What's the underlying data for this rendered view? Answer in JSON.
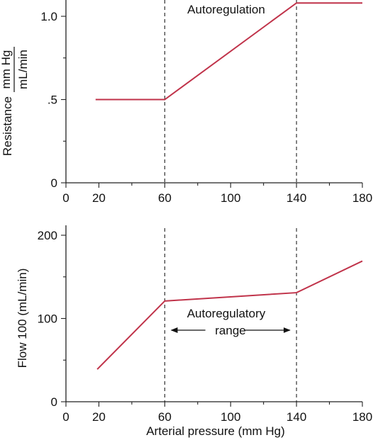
{
  "chart_data": [
    {
      "type": "line",
      "id": "resistance",
      "xlim": [
        0,
        180
      ],
      "ylim": [
        0,
        1.0
      ],
      "x_ticks": [
        0,
        20,
        60,
        100,
        140,
        180
      ],
      "x_tick_labels": [
        "0",
        "20",
        "60",
        "100",
        "140",
        "180"
      ],
      "x_minor_ticks": [
        40,
        80,
        120,
        160
      ],
      "y_ticks": [
        0,
        0.5,
        1.0
      ],
      "y_tick_labels": [
        "0",
        ".5",
        "1.0"
      ],
      "y_minor_ticks": [
        0.25,
        0.75
      ],
      "ylabel": "Resistance",
      "ylabel_unit_num": "mm Hg",
      "ylabel_unit_den": "mL/min",
      "xlabel": "",
      "annotation": "Autoregulation",
      "vertical_lines": [
        60,
        140
      ],
      "series": [
        {
          "x": [
            18,
            60,
            140,
            180
          ],
          "y": [
            0.5,
            0.5,
            1.08,
            1.08
          ],
          "color": "#c0334a"
        }
      ]
    },
    {
      "type": "line",
      "id": "flow",
      "xlim": [
        0,
        180
      ],
      "ylim": [
        0,
        200
      ],
      "x_ticks": [
        0,
        20,
        60,
        100,
        140,
        180
      ],
      "x_tick_labels": [
        "0",
        "20",
        "60",
        "100",
        "140",
        "180"
      ],
      "x_minor_ticks": [
        40,
        80,
        120,
        160
      ],
      "y_ticks": [
        0,
        100,
        200
      ],
      "y_tick_labels": [
        "0",
        "100",
        "200"
      ],
      "y_minor_ticks": [
        50,
        150
      ],
      "ylabel": "Flow 100 (mL/min)",
      "xlabel": "Arterial pressure (mm Hg)",
      "annotation_line1": "Autoregulatory",
      "annotation_line2": "range",
      "range_arrow": [
        64,
        136
      ],
      "vertical_lines": [
        60,
        140
      ],
      "series": [
        {
          "x": [
            19,
            60,
            140,
            180
          ],
          "y": [
            39,
            121,
            131,
            169
          ],
          "color": "#c0334a"
        }
      ]
    }
  ]
}
